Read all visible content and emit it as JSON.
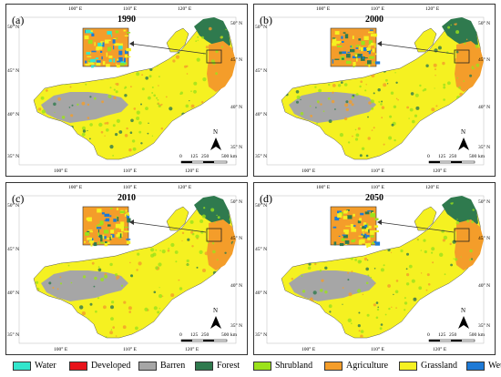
{
  "panels": [
    {
      "label": "(a)",
      "year": "1990"
    },
    {
      "label": "(b)",
      "year": "2000"
    },
    {
      "label": "(c)",
      "year": "2010"
    },
    {
      "label": "(d)",
      "year": "2050"
    }
  ],
  "axes": {
    "top_ticks": [
      "100° E",
      "110° E",
      "120° E"
    ],
    "bottom_ticks": [
      "100° E",
      "110° E",
      "120° E"
    ],
    "left_ticks": [
      "50° N",
      "45° N",
      "40° N",
      "35° N"
    ],
    "right_ticks": [
      "50° N",
      "45° N",
      "40° N",
      "35° N"
    ]
  },
  "north_label": "N",
  "scale_bar": {
    "ticks": [
      "0",
      "125",
      "250",
      "500"
    ],
    "unit": "km"
  },
  "legend": [
    {
      "label": "Water",
      "color": "#33e6cc"
    },
    {
      "label": "Developed",
      "color": "#e8131a"
    },
    {
      "label": "Barren",
      "color": "#a6a6a6"
    },
    {
      "label": "Forest",
      "color": "#2f7a4e"
    },
    {
      "label": "Shrubland",
      "color": "#9be21b"
    },
    {
      "label": "Agriculture",
      "color": "#f49d2a"
    },
    {
      "label": "Grassland",
      "color": "#f5f121"
    },
    {
      "label": "Wetland",
      "color": "#1e7ad6"
    }
  ]
}
